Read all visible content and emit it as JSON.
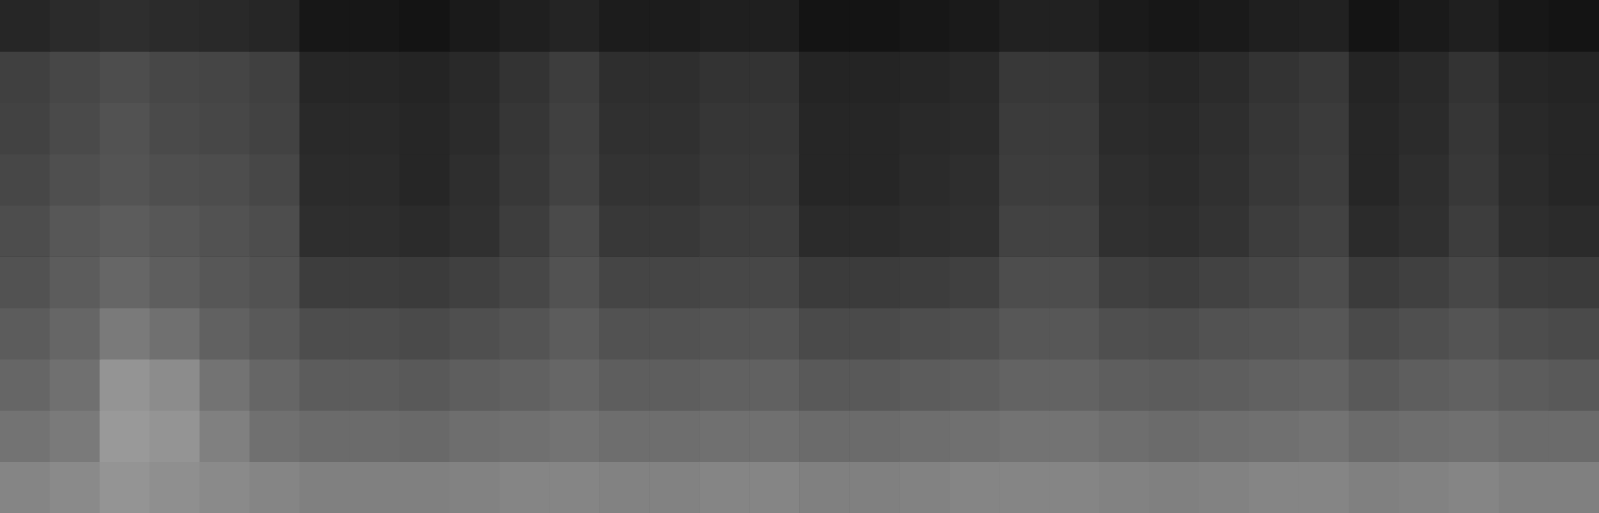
{
  "chart_data": {
    "type": "heatmap",
    "tick_labels": false,
    "grid": false,
    "zlim": [
      0,
      100
    ],
    "cells": [
      [
        15,
        17,
        18,
        17,
        16,
        15,
        9,
        9,
        8,
        10,
        12,
        14,
        11,
        11,
        12,
        12,
        8,
        8,
        9,
        10,
        13,
        13,
        10,
        9,
        10,
        12,
        13,
        8,
        10,
        12,
        9,
        8
      ],
      [
        25,
        28,
        30,
        28,
        27,
        25,
        15,
        15,
        14,
        16,
        20,
        24,
        18,
        18,
        20,
        20,
        14,
        14,
        15,
        16,
        22,
        22,
        16,
        15,
        17,
        20,
        22,
        14,
        16,
        20,
        15,
        14
      ],
      [
        26,
        29,
        32,
        29,
        28,
        26,
        16,
        16,
        15,
        17,
        21,
        25,
        19,
        19,
        21,
        21,
        15,
        15,
        16,
        17,
        23,
        23,
        17,
        16,
        18,
        21,
        23,
        15,
        17,
        21,
        16,
        15
      ],
      [
        28,
        31,
        33,
        31,
        30,
        28,
        17,
        17,
        15,
        18,
        22,
        26,
        20,
        20,
        22,
        22,
        15,
        15,
        17,
        18,
        24,
        24,
        18,
        17,
        19,
        22,
        24,
        15,
        18,
        22,
        17,
        15
      ],
      [
        30,
        34,
        36,
        34,
        32,
        30,
        18,
        18,
        17,
        19,
        24,
        29,
        22,
        22,
        24,
        24,
        17,
        17,
        18,
        19,
        26,
        26,
        19,
        18,
        20,
        24,
        26,
        17,
        19,
        24,
        18,
        17
      ],
      [
        32,
        36,
        40,
        37,
        34,
        32,
        24,
        24,
        23,
        25,
        28,
        32,
        27,
        27,
        28,
        28,
        23,
        23,
        24,
        25,
        30,
        30,
        25,
        24,
        26,
        28,
        30,
        23,
        25,
        28,
        24,
        23
      ],
      [
        36,
        40,
        48,
        44,
        38,
        35,
        30,
        30,
        29,
        31,
        33,
        36,
        32,
        32,
        33,
        33,
        29,
        29,
        30,
        31,
        34,
        34,
        31,
        30,
        32,
        33,
        34,
        29,
        31,
        33,
        30,
        29
      ],
      [
        40,
        44,
        58,
        55,
        45,
        40,
        36,
        36,
        35,
        37,
        38,
        40,
        37,
        37,
        38,
        38,
        35,
        35,
        36,
        37,
        39,
        39,
        37,
        36,
        37,
        38,
        39,
        35,
        37,
        38,
        36,
        35
      ],
      [
        45,
        48,
        60,
        58,
        50,
        44,
        42,
        42,
        41,
        43,
        44,
        45,
        43,
        43,
        44,
        44,
        42,
        42,
        43,
        44,
        45,
        45,
        43,
        42,
        43,
        44,
        45,
        42,
        43,
        44,
        42,
        42
      ],
      [
        52,
        54,
        58,
        56,
        54,
        52,
        50,
        50,
        50,
        51,
        52,
        52,
        51,
        51,
        52,
        52,
        50,
        50,
        51,
        52,
        52,
        52,
        51,
        50,
        51,
        52,
        52,
        50,
        51,
        52,
        50,
        50
      ]
    ]
  }
}
